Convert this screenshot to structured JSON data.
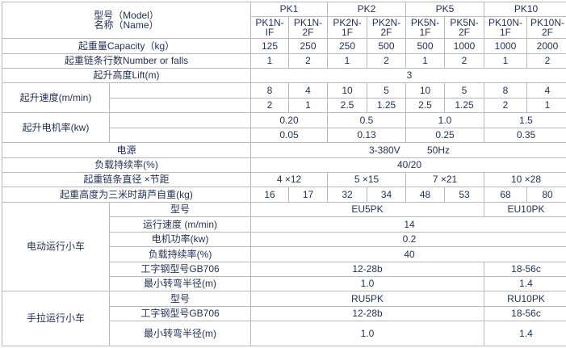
{
  "colors": {
    "text": "#243258",
    "border": "#b9b9b9",
    "outer_border": "#a3a3a3",
    "background": "#ffffff"
  },
  "table": {
    "description": "PK series hoist specification table",
    "rows": [
      {
        "name": "model-group",
        "cells": [
          {
            "n": "model-name-header",
            "lines": [
              "型号（Model）",
              "名称（Name）"
            ],
            "t": "型号（Model） 名称（Name）",
            "c": 2,
            "r": 2
          },
          {
            "n": "col-group-pk1",
            "t": "PK1",
            "c": 2
          },
          {
            "n": "col-group-pk2",
            "t": "PK2",
            "c": 2
          },
          {
            "n": "col-group-pk5",
            "t": "PK5",
            "c": 2
          },
          {
            "n": "col-group-pk10",
            "t": "PK10",
            "c": 2
          }
        ]
      },
      {
        "name": "model-sub",
        "cells": [
          {
            "t": "PK1N-IF"
          },
          {
            "t": "PK1N-2F"
          },
          {
            "t": "PK2N-1F"
          },
          {
            "t": "PK2N-2F"
          },
          {
            "t": "PK5N-1F"
          },
          {
            "t": "PK5N-2F"
          },
          {
            "t": "PK10N-1F"
          },
          {
            "t": "PK10N-2F"
          }
        ]
      },
      {
        "name": "capacity",
        "cells": [
          {
            "n": "capacity-label",
            "t": "起重量Capacity（kg）",
            "c": 2
          },
          {
            "t": "125"
          },
          {
            "t": "250"
          },
          {
            "t": "250"
          },
          {
            "t": "500"
          },
          {
            "t": "500"
          },
          {
            "t": "1000"
          },
          {
            "t": "1000"
          },
          {
            "t": "2000"
          }
        ]
      },
      {
        "name": "falls",
        "cells": [
          {
            "n": "falls-label",
            "t": "起重链条行数Number or falls",
            "c": 2
          },
          {
            "t": "1"
          },
          {
            "t": "2"
          },
          {
            "t": "1"
          },
          {
            "t": "2"
          },
          {
            "t": "1"
          },
          {
            "t": "2"
          },
          {
            "t": "1"
          },
          {
            "t": "2"
          }
        ]
      },
      {
        "name": "lift",
        "cells": [
          {
            "n": "lift-label",
            "t": "起升高度Lift(m)",
            "c": 2
          },
          {
            "n": "lift-value",
            "t": "3",
            "c": 8
          }
        ]
      },
      {
        "name": "lift-speed-a",
        "cells": [
          {
            "n": "lift-speed-label",
            "t": "起升速度(m/min)",
            "r": 2
          },
          {
            "n": "lift-speed-spacer-a",
            "t": ""
          },
          {
            "t": "8"
          },
          {
            "t": "4"
          },
          {
            "t": "10"
          },
          {
            "t": "5"
          },
          {
            "t": "10"
          },
          {
            "t": "5"
          },
          {
            "t": "8"
          },
          {
            "t": "4"
          }
        ]
      },
      {
        "name": "lift-speed-b",
        "cells": [
          {
            "n": "lift-speed-spacer-b",
            "t": ""
          },
          {
            "t": "2"
          },
          {
            "t": "1"
          },
          {
            "t": "2.5"
          },
          {
            "t": "1.25"
          },
          {
            "t": "2.5"
          },
          {
            "t": "1.25"
          },
          {
            "t": "2"
          },
          {
            "t": "1"
          }
        ]
      },
      {
        "name": "lift-motor-a",
        "cells": [
          {
            "n": "lift-motor-label",
            "t": "起升电机率(kw)",
            "r": 2
          },
          {
            "n": "lift-motor-spacer-a",
            "t": ""
          },
          {
            "t": "0.20",
            "c": 2
          },
          {
            "t": "0.5",
            "c": 2
          },
          {
            "t": "1.0",
            "c": 2
          },
          {
            "t": "1.5",
            "c": 2
          }
        ]
      },
      {
        "name": "lift-motor-b",
        "cells": [
          {
            "n": "lift-motor-spacer-b",
            "t": ""
          },
          {
            "t": "0.05",
            "c": 2
          },
          {
            "t": "0.13",
            "c": 2
          },
          {
            "t": "0.25",
            "c": 2
          },
          {
            "t": "0.35",
            "c": 2
          }
        ]
      },
      {
        "name": "power-supply",
        "cells": [
          {
            "n": "power-supply-label",
            "t": "电源",
            "c": 2
          },
          {
            "n": "power-supply-value",
            "t": "3-380V          50Hz",
            "c": 8
          }
        ]
      },
      {
        "name": "duty-cycle",
        "cells": [
          {
            "n": "duty-cycle-label",
            "t": "负载持续率(%)",
            "c": 2
          },
          {
            "n": "duty-cycle-value",
            "t": "40/20",
            "c": 8
          }
        ]
      },
      {
        "name": "chain-size",
        "cells": [
          {
            "n": "chain-size-label",
            "t": "起重链条直径 ×节距",
            "c": 2
          },
          {
            "t": "4 ×12",
            "c": 2
          },
          {
            "t": "5 ×15",
            "c": 2
          },
          {
            "t": "7 ×21",
            "c": 2
          },
          {
            "t": "10 ×28",
            "c": 2
          }
        ]
      },
      {
        "name": "self-weight",
        "cells": [
          {
            "n": "self-weight-label",
            "t": "起重高度为三米时葫芦自重(kg)",
            "c": 2
          },
          {
            "t": "16"
          },
          {
            "t": "17"
          },
          {
            "t": "32"
          },
          {
            "t": "34"
          },
          {
            "t": "48"
          },
          {
            "t": "53"
          },
          {
            "t": "68"
          },
          {
            "t": "80"
          }
        ]
      },
      {
        "name": "etrolley-model",
        "cells": [
          {
            "n": "etrolley-group-label",
            "t": "电动运行小车",
            "r": 6
          },
          {
            "n": "etrolley-model-label",
            "t": "型号"
          },
          {
            "t": "EU5PK",
            "c": 6
          },
          {
            "t": "EU10PK",
            "c": 2
          }
        ]
      },
      {
        "name": "etrolley-speed",
        "cells": [
          {
            "n": "etrolley-speed-label",
            "t": "运行速度 (m/min)"
          },
          {
            "n": "etrolley-speed-value",
            "t": "14",
            "c": 8
          }
        ]
      },
      {
        "name": "etrolley-power",
        "cells": [
          {
            "n": "etrolley-power-label",
            "t": "电机功率(kw)"
          },
          {
            "n": "etrolley-power-value",
            "t": "0.2",
            "c": 8
          }
        ]
      },
      {
        "name": "etrolley-duty",
        "cells": [
          {
            "n": "etrolley-duty-label",
            "t": "负载持续率(%)"
          },
          {
            "n": "etrolley-duty-value",
            "t": "40",
            "c": 8
          }
        ]
      },
      {
        "name": "etrolley-beam",
        "cells": [
          {
            "n": "etrolley-beam-label",
            "t": "工字钢型号GB706"
          },
          {
            "t": "12-28b",
            "c": 6
          },
          {
            "t": "18-56c",
            "c": 2
          }
        ]
      },
      {
        "name": "etrolley-radius",
        "cells": [
          {
            "n": "etrolley-radius-label",
            "t": "最小转弯半径(m)"
          },
          {
            "t": "1.0",
            "c": 6
          },
          {
            "t": "1.4",
            "c": 2
          }
        ]
      },
      {
        "name": "htrolley-model",
        "cells": [
          {
            "n": "htrolley-group-label",
            "t": "手拉运行小车",
            "r": 3
          },
          {
            "n": "htrolley-model-label",
            "t": "型号"
          },
          {
            "t": "RU5PK",
            "c": 6
          },
          {
            "t": "RU10PK",
            "c": 2
          }
        ]
      },
      {
        "name": "htrolley-beam",
        "cells": [
          {
            "n": "htrolley-beam-label",
            "t": "工字钢型号GB706"
          },
          {
            "t": "12-28b",
            "c": 6
          },
          {
            "t": "18-56c",
            "c": 2
          }
        ]
      },
      {
        "name": "htrolley-radius",
        "cells": [
          {
            "n": "htrolley-radius-label",
            "t": "最小转弯半径(m)"
          },
          {
            "t": "1.0",
            "c": 6
          },
          {
            "t": "1.4",
            "c": 2
          }
        ]
      }
    ]
  }
}
